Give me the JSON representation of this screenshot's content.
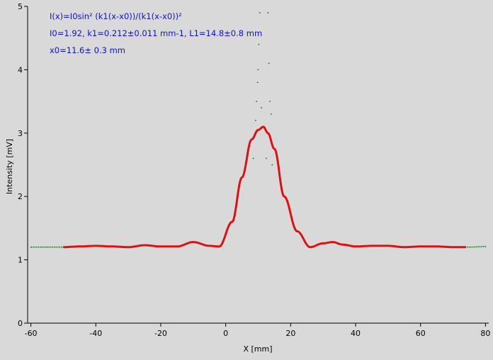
{
  "chart_data": {
    "type": "scatter",
    "xlabel": "X [mm]",
    "ylabel": "Intensity [mV]",
    "xlim": [
      -61,
      81
    ],
    "ylim": [
      0,
      5
    ],
    "xticks": [
      -60,
      -40,
      -20,
      0,
      20,
      40,
      60,
      80
    ],
    "yticks": [
      0,
      1,
      2,
      3,
      4,
      5
    ],
    "grid": false,
    "annotations": {
      "formula": "I(x)=I0sin² (k1(x-x0))/(k1(x-x0))²",
      "params1": "I0=1.92,  k1=0.212±0.011 mm-1,   L1=14.8±0.8 mm",
      "params2": "x0=11.6±  0.3 mm"
    },
    "series": [
      {
        "role": "data points",
        "color": "#1a7a1a",
        "x": [
          -60,
          -55,
          -50,
          -45,
          -40,
          -35,
          -30,
          -25,
          -20,
          -15,
          -10,
          -5,
          -2,
          2,
          5,
          8,
          10,
          11.6,
          13,
          15,
          18,
          22,
          26,
          30,
          33,
          36,
          40,
          45,
          50,
          55,
          60,
          65,
          70,
          75,
          80
        ],
        "y": [
          1.2,
          1.2,
          1.2,
          1.21,
          1.22,
          1.21,
          1.2,
          1.23,
          1.21,
          1.21,
          1.28,
          1.22,
          1.21,
          1.6,
          2.3,
          2.9,
          3.05,
          3.1,
          3.0,
          2.75,
          2.0,
          1.45,
          1.2,
          1.26,
          1.28,
          1.24,
          1.21,
          1.22,
          1.22,
          1.2,
          1.21,
          1.21,
          1.2,
          1.2,
          1.21
        ]
      },
      {
        "role": "fit",
        "color": "#dd1111",
        "x": [
          -50,
          -45,
          -40,
          -35,
          -30,
          -25,
          -20,
          -15,
          -10,
          -5,
          -2,
          2,
          5,
          8,
          10,
          11.6,
          13,
          15,
          18,
          22,
          26,
          30,
          33,
          36,
          40,
          45,
          50,
          55,
          60,
          65,
          70,
          74
        ],
        "y": [
          1.2,
          1.21,
          1.22,
          1.21,
          1.2,
          1.23,
          1.21,
          1.21,
          1.28,
          1.22,
          1.21,
          1.6,
          2.3,
          2.9,
          3.05,
          3.1,
          3.0,
          2.75,
          2.0,
          1.45,
          1.2,
          1.26,
          1.28,
          1.24,
          1.21,
          1.22,
          1.22,
          1.2,
          1.21,
          1.21,
          1.2,
          1.2
        ]
      }
    ],
    "outlier_points": {
      "x": [
        8.5,
        9,
        9.2,
        9.5,
        9.8,
        10,
        10.2,
        10.5,
        11,
        12.5,
        13,
        13.3,
        13.6,
        14,
        14.3
      ],
      "y": [
        2.6,
        3.0,
        3.2,
        3.5,
        3.8,
        4.0,
        4.4,
        4.9,
        3.4,
        2.6,
        4.9,
        4.1,
        3.5,
        3.3,
        2.5
      ]
    }
  }
}
